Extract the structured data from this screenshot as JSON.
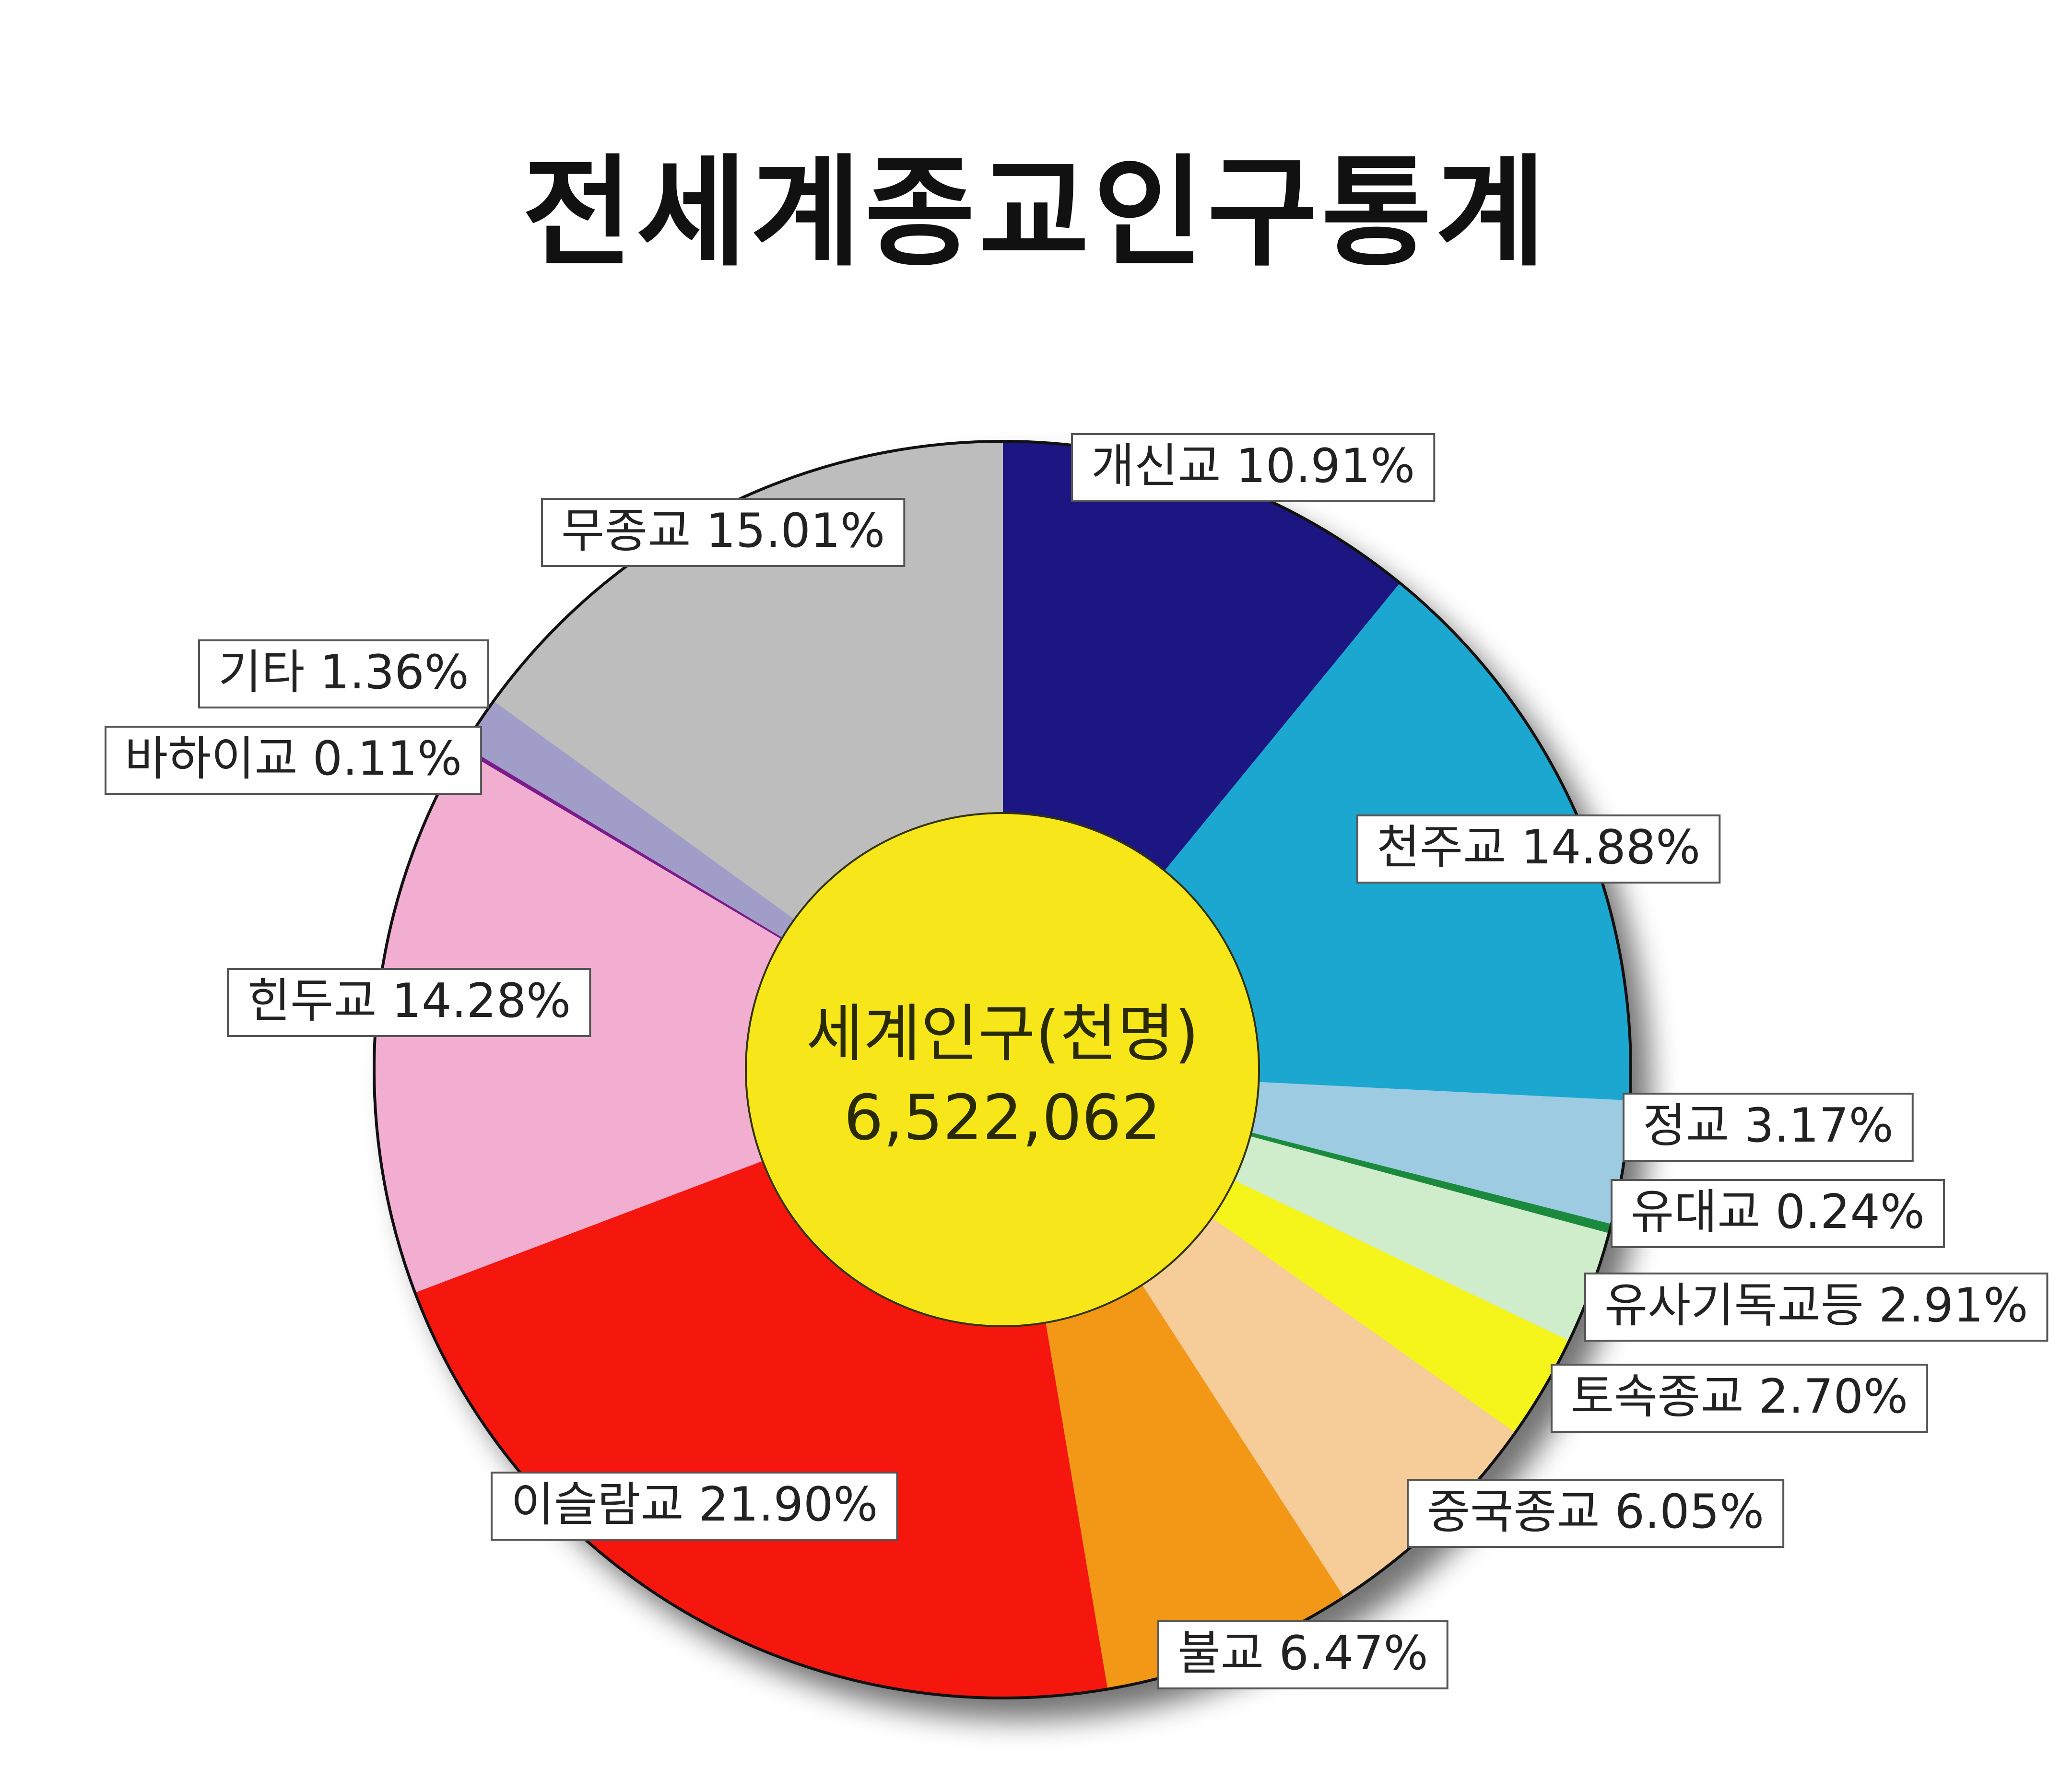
{
  "chart_data": {
    "type": "pie",
    "title": "전세계종교인구통계",
    "center_label": "세계인구(천명)",
    "center_value": "6,522,062",
    "slices": [
      {
        "label": "개신교 10.91%",
        "value": 10.91,
        "color": "#1f1282"
      },
      {
        "label": "천주교 14.88%",
        "value": 14.88,
        "color": "#1aa7d0"
      },
      {
        "label": "정교 3.17%",
        "value": 3.17,
        "color": "#9ccbe2"
      },
      {
        "label": "유대교 0.24%",
        "value": 0.24,
        "color": "#1f8a3c"
      },
      {
        "label": "유사기독교등 2.91%",
        "value": 2.91,
        "color": "#cfeccb"
      },
      {
        "label": "토속종교 2.70%",
        "value": 2.7,
        "color": "#f5f51c"
      },
      {
        "label": "중국종교 6.05%",
        "value": 6.05,
        "color": "#f6cc98"
      },
      {
        "label": "불교 6.47%",
        "value": 6.47,
        "color": "#f39816"
      },
      {
        "label": "이슬람교 21.90%",
        "value": 21.9,
        "color": "#f5120f"
      },
      {
        "label": "힌두교 14.28%",
        "value": 14.28,
        "color": "#f2aed0"
      },
      {
        "label": "바하이교 0.11%",
        "value": 0.11,
        "color": "#7b1a8a"
      },
      {
        "label": "기타 1.36%",
        "value": 1.36,
        "color": "#a09ec8"
      },
      {
        "label": "무종교 15.01%",
        "value": 15.01,
        "color": "#bdbdbd"
      }
    ],
    "center_color": "#f7e71a",
    "legend": "none"
  }
}
